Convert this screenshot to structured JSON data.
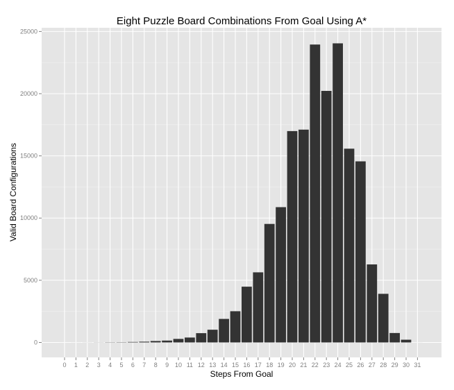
{
  "chart_data": {
    "type": "bar",
    "title": "Eight Puzzle Board Combinations From Goal Using A*",
    "xlabel": "Steps From Goal",
    "ylabel": "Valid Board Configurations",
    "categories": [
      "0",
      "1",
      "2",
      "3",
      "4",
      "5",
      "6",
      "7",
      "8",
      "9",
      "10",
      "11",
      "12",
      "13",
      "14",
      "15",
      "16",
      "17",
      "18",
      "19",
      "20",
      "21",
      "22",
      "23",
      "24",
      "25",
      "26",
      "27",
      "28",
      "29",
      "30",
      "31"
    ],
    "values": [
      1,
      2,
      4,
      8,
      16,
      20,
      39,
      62,
      116,
      152,
      286,
      396,
      748,
      1024,
      1893,
      2512,
      4485,
      5638,
      9529,
      10878,
      16993,
      17110,
      23952,
      20224,
      24047,
      15578,
      14560,
      6274,
      3910,
      760,
      221,
      2
    ],
    "y_ticks": [
      0,
      5000,
      10000,
      15000,
      20000,
      25000
    ],
    "y_tick_labels": [
      "0",
      "5000",
      "10000",
      "15000",
      "20000",
      "25000"
    ],
    "ylim": [
      -1200,
      25300
    ],
    "grid": true,
    "colors": {
      "panel_background": "#e5e5e5",
      "grid_major": "#ffffff",
      "grid_minor": "#f2f2f2",
      "bar_fill": "#333333",
      "tick_label": "#7f7f7f"
    }
  }
}
